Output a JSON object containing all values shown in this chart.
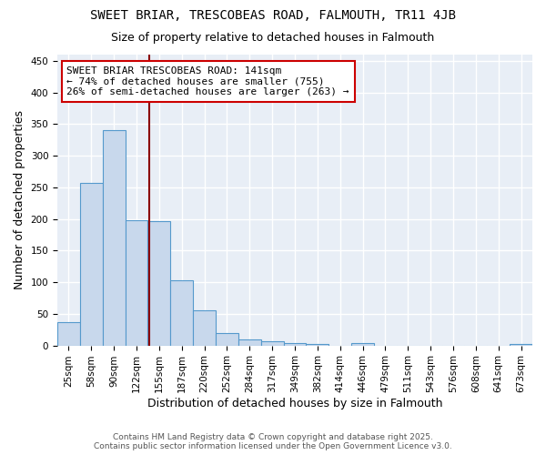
{
  "title1": "SWEET BRIAR, TRESCOBEAS ROAD, FALMOUTH, TR11 4JB",
  "title2": "Size of property relative to detached houses in Falmouth",
  "xlabel": "Distribution of detached houses by size in Falmouth",
  "ylabel": "Number of detached properties",
  "categories": [
    "25sqm",
    "58sqm",
    "90sqm",
    "122sqm",
    "155sqm",
    "187sqm",
    "220sqm",
    "252sqm",
    "284sqm",
    "317sqm",
    "349sqm",
    "382sqm",
    "414sqm",
    "446sqm",
    "479sqm",
    "511sqm",
    "543sqm",
    "576sqm",
    "608sqm",
    "641sqm",
    "673sqm"
  ],
  "values": [
    37,
    257,
    340,
    198,
    197,
    103,
    55,
    20,
    10,
    7,
    4,
    3,
    0,
    4,
    0,
    0,
    0,
    0,
    0,
    0,
    3
  ],
  "bar_color": "#c8d8ec",
  "bar_edge_color": "#5599cc",
  "vline_color": "#8b0000",
  "annotation_text": "SWEET BRIAR TRESCOBEAS ROAD: 141sqm\n← 74% of detached houses are smaller (755)\n26% of semi-detached houses are larger (263) →",
  "annotation_box_color": "white",
  "annotation_box_edge": "#cc0000",
  "ylim": [
    0,
    460
  ],
  "yticks": [
    0,
    50,
    100,
    150,
    200,
    250,
    300,
    350,
    400,
    450
  ],
  "background_color": "#e8eef6",
  "grid_color": "white",
  "footer_text": "Contains HM Land Registry data © Crown copyright and database right 2025.\nContains public sector information licensed under the Open Government Licence v3.0.",
  "title_fontsize": 10,
  "subtitle_fontsize": 9,
  "axis_label_fontsize": 9,
  "tick_fontsize": 7.5,
  "annotation_fontsize": 8,
  "footer_fontsize": 6.5
}
